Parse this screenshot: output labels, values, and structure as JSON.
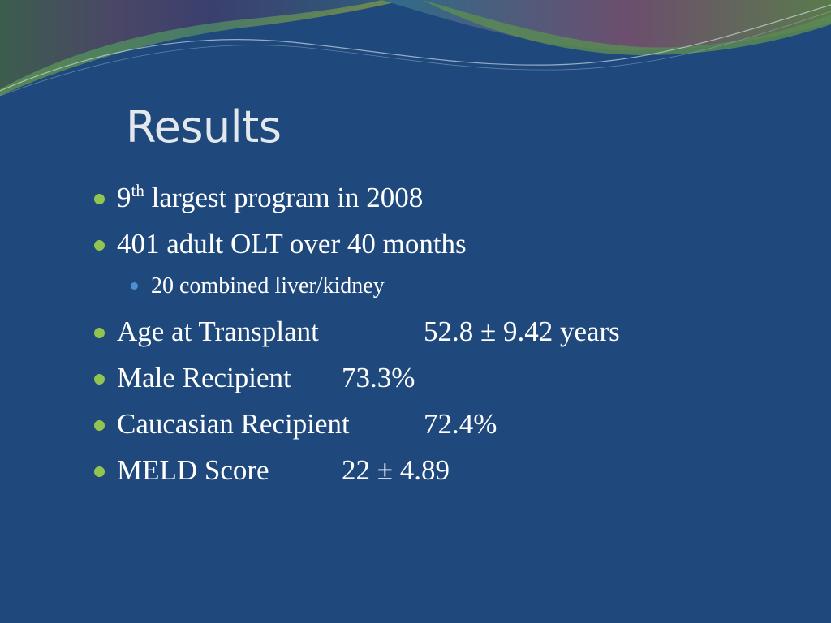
{
  "slide": {
    "title": "Results",
    "items": [
      {
        "pre": "9",
        "sup": "th",
        "text": " largest program in 2008"
      },
      {
        "text": "401 adult OLT over 40 months"
      },
      {
        "text": "20 combined liver/kidney"
      },
      {
        "label": "Age at Transplant",
        "value": "52.8 ± 9.42 years"
      },
      {
        "label": "Male Recipient",
        "value": "73.3%"
      },
      {
        "label": "Caucasian Recipient",
        "value": "72.4%"
      },
      {
        "label": "MELD Score",
        "value": "22 ± 4.89"
      }
    ]
  },
  "theme": {
    "background": "#1f487c",
    "title_color": "#e2e8ec",
    "text_color": "#ffffff",
    "bullet_primary": "#92c44f",
    "bullet_secondary": "#4e8fd0",
    "wave_colors": [
      "#3f6f8f",
      "#5c8f4f",
      "#8a5060",
      "#6f8f3f"
    ]
  }
}
